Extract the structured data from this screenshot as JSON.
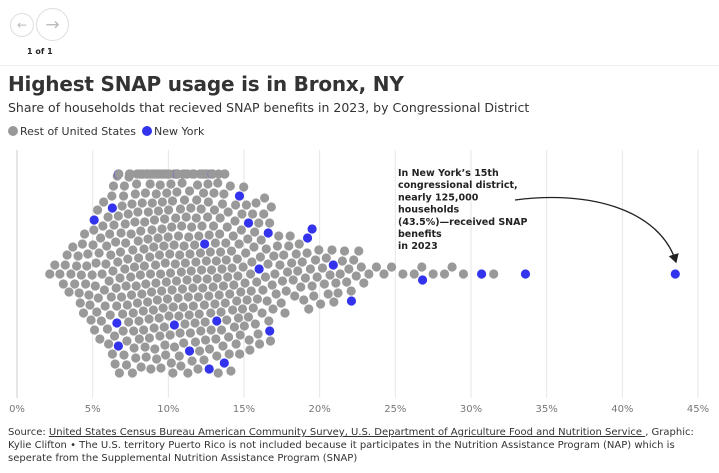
{
  "nav": {
    "prev_icon": "arrow-left-icon",
    "next_icon": "arrow-right-icon",
    "page_indicator": "1 of 1"
  },
  "header": {
    "title": "Highest SNAP usage is in Bronx, NY",
    "subtitle": "Share of households that recieved SNAP benefits in 2023, by Congressional District"
  },
  "legend": [
    {
      "label": "Rest of United States",
      "color": "#999999"
    },
    {
      "label": "New York",
      "color": "#3333ee"
    }
  ],
  "chart_data": {
    "type": "scatter",
    "subtype": "beeswarm",
    "x_range": [
      0,
      45
    ],
    "x_ticks": [
      "0%",
      "5%",
      "10%",
      "15%",
      "20%",
      "25%",
      "30%",
      "35%",
      "40%",
      "45%"
    ],
    "grid": "vertical",
    "series": [
      {
        "name": "Rest of United States",
        "color": "#999999",
        "bins_percent_count": [
          [
            2,
            3
          ],
          [
            3,
            8
          ],
          [
            4,
            14
          ],
          [
            5,
            20
          ],
          [
            6,
            28
          ],
          [
            7,
            36
          ],
          [
            8,
            42
          ],
          [
            9,
            42
          ],
          [
            10,
            38
          ],
          [
            11,
            36
          ],
          [
            12,
            38
          ],
          [
            13,
            32
          ],
          [
            14,
            26
          ],
          [
            15,
            22
          ],
          [
            16,
            18
          ],
          [
            17,
            12
          ],
          [
            18,
            10
          ],
          [
            19,
            9
          ],
          [
            20,
            8
          ],
          [
            21,
            7
          ],
          [
            22,
            6
          ],
          [
            23,
            2
          ],
          [
            24,
            2
          ],
          [
            25,
            1
          ],
          [
            26,
            2
          ],
          [
            27,
            1
          ],
          [
            28,
            2
          ],
          [
            29,
            1
          ],
          [
            31,
            1
          ]
        ]
      },
      {
        "name": "New York",
        "color": "#3333ee",
        "values": [
          5.1,
          6.3,
          6.6,
          6.7,
          6.7,
          10.4,
          10.6,
          11.4,
          12.4,
          12.7,
          12.9,
          13.2,
          13.7,
          14.7,
          15.3,
          16.0,
          16.6,
          16.7,
          19.2,
          19.5,
          20.9,
          22.1,
          26.8,
          30.7,
          33.6,
          43.5
        ]
      }
    ],
    "annotation": "In New York's 15th congressional district, nearly 125,000 households (43.5%)—received SNAP benefits in 2023"
  },
  "footer": {
    "source_prefix": "Source: ",
    "source_link": "United States Census Bureau American Community Survey, U.S. Department of Agriculture Food and Nutrition Service ",
    "credit": ", Graphic: Kylie Clifton • The U.S. territory Puerto Rico is not included because it participates in the Nutrition Assistance Program (NAP) which is seperate from the Supplemental Nutrition Assistance Program (SNAP)"
  }
}
